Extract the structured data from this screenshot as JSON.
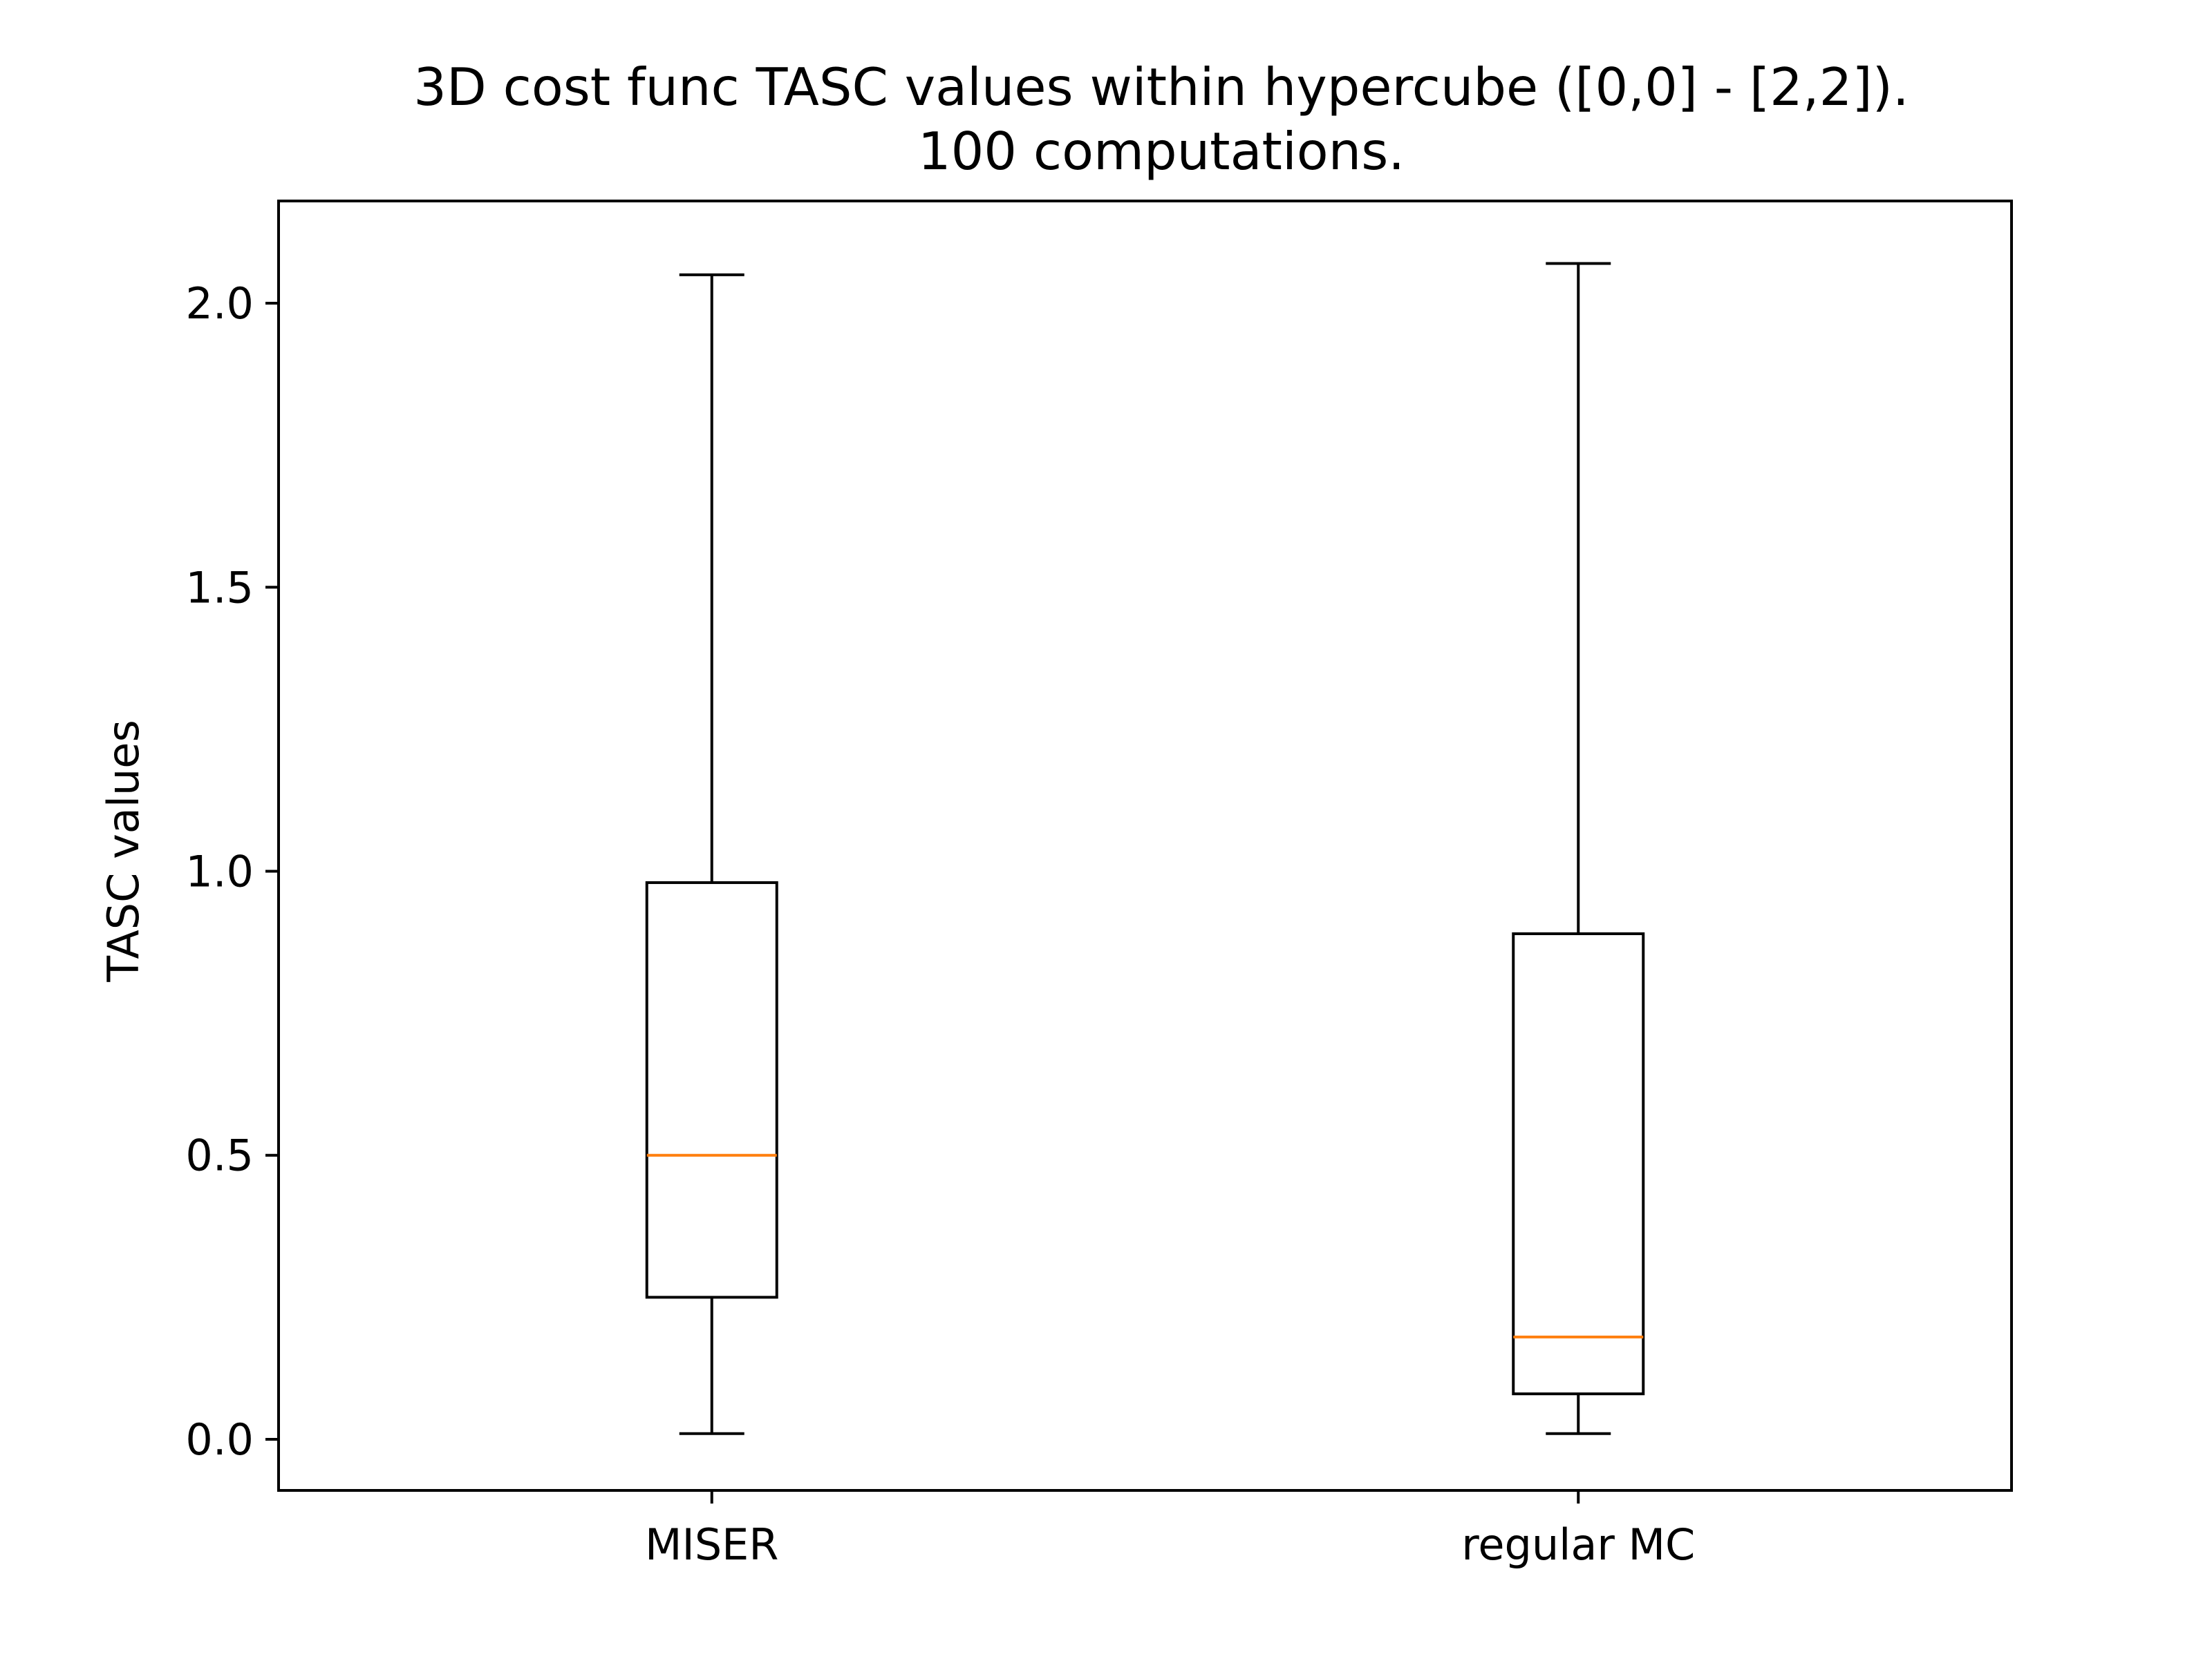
{
  "chart_data": {
    "type": "box",
    "title": "3D cost func TASC values within hypercube ([0,0] - [2,2]).",
    "subtitle": "100 computations.",
    "xlabel": "",
    "ylabel": "TASC values",
    "categories": [
      "MISER",
      "regular MC"
    ],
    "ylim": [
      -0.09,
      2.18
    ],
    "yticks": [
      0.0,
      0.5,
      1.0,
      1.5,
      2.0
    ],
    "ytick_labels": [
      "0.0",
      "0.5",
      "1.0",
      "1.5",
      "2.0"
    ],
    "boxes": [
      {
        "label": "MISER",
        "whisker_low": 0.01,
        "q1": 0.25,
        "median": 0.5,
        "q3": 0.98,
        "whisker_high": 2.05
      },
      {
        "label": "regular MC",
        "whisker_low": 0.01,
        "q1": 0.08,
        "median": 0.18,
        "q3": 0.89,
        "whisker_high": 2.07
      }
    ],
    "grid": false,
    "colors": {
      "box": "#000000",
      "median": "#ff7f0e"
    }
  }
}
